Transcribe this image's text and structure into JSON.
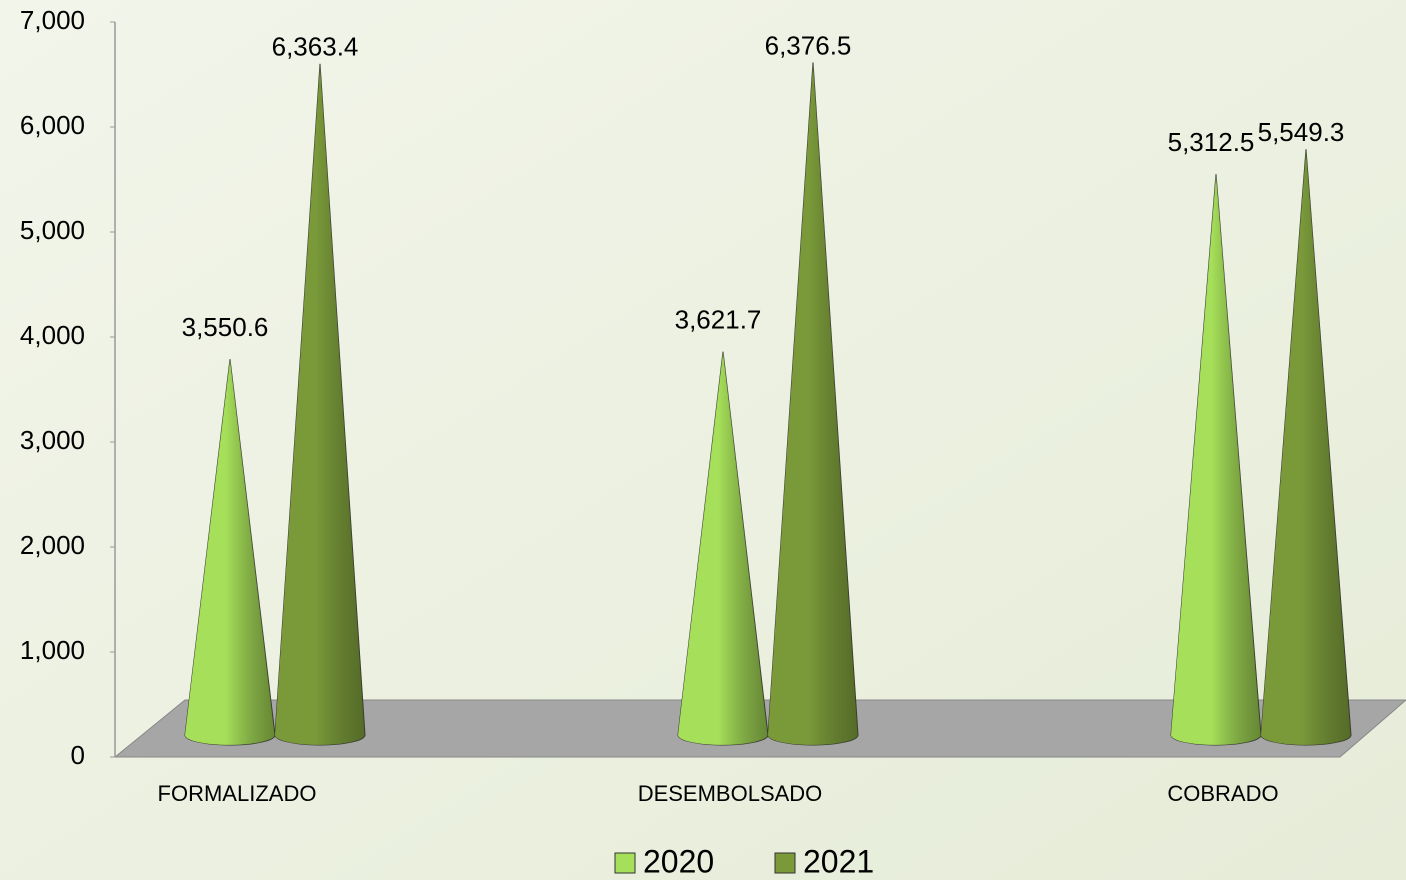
{
  "chart_data": {
    "type": "cone",
    "categories": [
      "FORMALIZADO",
      "DESEMBOLSADO",
      "COBRADO"
    ],
    "series": [
      {
        "name": "2020",
        "color": "#a6e05a",
        "values": [
          3550.6,
          3621.7,
          5312.5
        ],
        "value_labels": [
          "3,550.6",
          "3,621.7",
          "5,312.5"
        ]
      },
      {
        "name": "2021",
        "color": "#7a9a3a",
        "values": [
          6363.4,
          6376.5,
          5549.3
        ],
        "value_labels": [
          "6,363.4",
          "6,376.5",
          "5,549.3"
        ]
      }
    ],
    "ylim": [
      0,
      7000
    ],
    "yticks": [
      0,
      {
        "value": 1000,
        "label": "1,000"
      },
      {
        "value": 2000,
        "label": "2,000"
      },
      {
        "value": 3000,
        "label": "3,000"
      },
      {
        "value": 4000,
        "label": "4,000"
      },
      {
        "value": 5000,
        "label": "5,000"
      },
      {
        "value": 6000,
        "label": "6,000"
      },
      {
        "value": 7000,
        "label": "7,000"
      }
    ],
    "grid": false,
    "legend": "bottom"
  }
}
